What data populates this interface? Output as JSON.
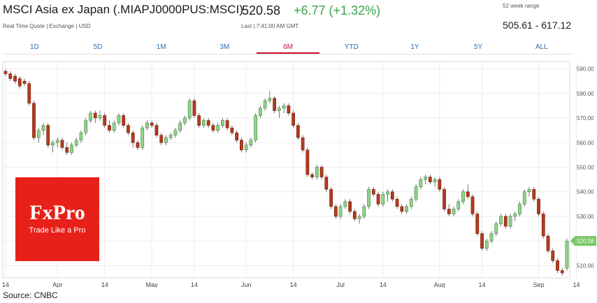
{
  "header": {
    "title": "MSCI Asia ex Japan (.MIAPJ0000PUS:MSCI)",
    "price": "520.58",
    "change": "+6.77 (+1.32%)",
    "subline": "Real Time Quote | Exchange | USD",
    "last_update": "Last | 7:41:00 AM GMT",
    "range_label": "52 week range",
    "range_value": "505.61 - 617.12"
  },
  "tabs": [
    {
      "label": "1D"
    },
    {
      "label": "5D"
    },
    {
      "label": "1M"
    },
    {
      "label": "3M"
    },
    {
      "label": "6M",
      "active": true
    },
    {
      "label": "YTD"
    },
    {
      "label": "1Y"
    },
    {
      "label": "5Y"
    },
    {
      "label": "ALL"
    }
  ],
  "logo": {
    "main": "FxPro",
    "sub": "Trade Like a Pro"
  },
  "source": "Source: CNBC",
  "colors": {
    "up": "#8fd48a",
    "down": "#b23a1e",
    "accent": "#c8102e",
    "price_tag": "#7dc86a",
    "logo_bg": "#e8201a"
  },
  "chart_data": {
    "type": "candlestick",
    "ylim": [
      505,
      593
    ],
    "y_ticks": [
      510,
      520,
      530,
      540,
      550,
      560,
      570,
      580,
      590
    ],
    "y_tick_labels": [
      "510.00",
      "520.00",
      "530.00",
      "540.00",
      "550.00",
      "560.00",
      "570.00",
      "580.00",
      "590.00"
    ],
    "x_labels": [
      {
        "i": 0,
        "label": "14"
      },
      {
        "i": 11,
        "label": "Apr"
      },
      {
        "i": 21,
        "label": "14"
      },
      {
        "i": 31,
        "label": "May"
      },
      {
        "i": 40,
        "label": "14"
      },
      {
        "i": 51,
        "label": "Jun"
      },
      {
        "i": 61,
        "label": "14"
      },
      {
        "i": 71,
        "label": "Jul"
      },
      {
        "i": 80,
        "label": "14"
      },
      {
        "i": 92,
        "label": "Aug"
      },
      {
        "i": 101,
        "label": "14"
      },
      {
        "i": 113,
        "label": "Sep"
      },
      {
        "i": 121,
        "label": "14"
      }
    ],
    "last_price_label": "520.58",
    "candles": [
      [
        589,
        590,
        587,
        588
      ],
      [
        588,
        589,
        585,
        586
      ],
      [
        587,
        588,
        584,
        585
      ],
      [
        586,
        587,
        582,
        583
      ],
      [
        585,
        586,
        583,
        584
      ],
      [
        584,
        585,
        575,
        576
      ],
      [
        576,
        577,
        561,
        562
      ],
      [
        562,
        566,
        560,
        565
      ],
      [
        565,
        568,
        563,
        567
      ],
      [
        567,
        568,
        558,
        559
      ],
      [
        559,
        561,
        556,
        560
      ],
      [
        560,
        562,
        558,
        561
      ],
      [
        561,
        562,
        557,
        558
      ],
      [
        558,
        560,
        555,
        556
      ],
      [
        556,
        560,
        555,
        559
      ],
      [
        559,
        562,
        558,
        561
      ],
      [
        561,
        565,
        560,
        564
      ],
      [
        564,
        570,
        563,
        569
      ],
      [
        569,
        573,
        568,
        572
      ],
      [
        572,
        573,
        568,
        570
      ],
      [
        570,
        573,
        569,
        571
      ],
      [
        571,
        572,
        566,
        567
      ],
      [
        567,
        569,
        564,
        565
      ],
      [
        565,
        569,
        564,
        568
      ],
      [
        568,
        572,
        567,
        571
      ],
      [
        571,
        572,
        566,
        567
      ],
      [
        567,
        568,
        563,
        564
      ],
      [
        564,
        565,
        558,
        560
      ],
      [
        560,
        561,
        557,
        558
      ],
      [
        558,
        567,
        557,
        566
      ],
      [
        566,
        569,
        565,
        568
      ],
      [
        568,
        569,
        566,
        567
      ],
      [
        567,
        568,
        562,
        563
      ],
      [
        563,
        564,
        559,
        560
      ],
      [
        560,
        563,
        559,
        562
      ],
      [
        562,
        564,
        561,
        563
      ],
      [
        563,
        566,
        562,
        565
      ],
      [
        565,
        569,
        564,
        568
      ],
      [
        568,
        571,
        567,
        570
      ],
      [
        570,
        578,
        569,
        577
      ],
      [
        577,
        578,
        570,
        571
      ],
      [
        571,
        572,
        566,
        567
      ],
      [
        567,
        570,
        566,
        569
      ],
      [
        569,
        570,
        566,
        567
      ],
      [
        567,
        568,
        564,
        565
      ],
      [
        565,
        568,
        564,
        567
      ],
      [
        567,
        570,
        566,
        569
      ],
      [
        569,
        570,
        565,
        566
      ],
      [
        566,
        567,
        563,
        564
      ],
      [
        564,
        565,
        560,
        561
      ],
      [
        561,
        562,
        556,
        557
      ],
      [
        557,
        560,
        556,
        559
      ],
      [
        559,
        562,
        558,
        561
      ],
      [
        561,
        572,
        560,
        571
      ],
      [
        571,
        575,
        570,
        574
      ],
      [
        574,
        578,
        573,
        577
      ],
      [
        577,
        581,
        576,
        578
      ],
      [
        578,
        579,
        572,
        573
      ],
      [
        573,
        575,
        570,
        574
      ],
      [
        574,
        576,
        572,
        575
      ],
      [
        575,
        576,
        571,
        572
      ],
      [
        572,
        573,
        566,
        567
      ],
      [
        567,
        568,
        561,
        562
      ],
      [
        562,
        563,
        556,
        557
      ],
      [
        557,
        558,
        546,
        547
      ],
      [
        547,
        548,
        545,
        546
      ],
      [
        546,
        551,
        545,
        550
      ],
      [
        550,
        551,
        545,
        546
      ],
      [
        546,
        547,
        540,
        541
      ],
      [
        541,
        542,
        533,
        534
      ],
      [
        534,
        535,
        529,
        530
      ],
      [
        530,
        535,
        529,
        534
      ],
      [
        534,
        537,
        533,
        536
      ],
      [
        536,
        537,
        531,
        532
      ],
      [
        532,
        533,
        528,
        529
      ],
      [
        529,
        531,
        527,
        530
      ],
      [
        530,
        535,
        529,
        534
      ],
      [
        534,
        542,
        533,
        541
      ],
      [
        541,
        542,
        538,
        539
      ],
      [
        539,
        540,
        534,
        535
      ],
      [
        535,
        540,
        534,
        539
      ],
      [
        539,
        541,
        536,
        540
      ],
      [
        540,
        541,
        536,
        537
      ],
      [
        537,
        538,
        533,
        534
      ],
      [
        534,
        535,
        531,
        532
      ],
      [
        532,
        535,
        531,
        534
      ],
      [
        534,
        538,
        533,
        537
      ],
      [
        537,
        543,
        536,
        542
      ],
      [
        542,
        546,
        541,
        545
      ],
      [
        545,
        547,
        543,
        546
      ],
      [
        546,
        547,
        543,
        544
      ],
      [
        544,
        546,
        542,
        545
      ],
      [
        545,
        546,
        540,
        541
      ],
      [
        541,
        542,
        532,
        533
      ],
      [
        533,
        535,
        530,
        531
      ],
      [
        531,
        534,
        530,
        533
      ],
      [
        533,
        537,
        532,
        536
      ],
      [
        536,
        541,
        535,
        540
      ],
      [
        540,
        543,
        537,
        538
      ],
      [
        538,
        539,
        530,
        531
      ],
      [
        531,
        532,
        522,
        523
      ],
      [
        523,
        524,
        516,
        517
      ],
      [
        517,
        521,
        516,
        520
      ],
      [
        520,
        524,
        519,
        523
      ],
      [
        523,
        528,
        522,
        527
      ],
      [
        527,
        531,
        526,
        530
      ],
      [
        530,
        531,
        525,
        526
      ],
      [
        526,
        531,
        525,
        530
      ],
      [
        530,
        532,
        528,
        531
      ],
      [
        531,
        536,
        530,
        535
      ],
      [
        535,
        541,
        534,
        540
      ],
      [
        540,
        542,
        538,
        541
      ],
      [
        541,
        542,
        536,
        537
      ],
      [
        537,
        538,
        530,
        531
      ],
      [
        531,
        532,
        521,
        522
      ],
      [
        522,
        523,
        515,
        516
      ],
      [
        516,
        517,
        511,
        512
      ],
      [
        512,
        513,
        507,
        508
      ],
      [
        508,
        509,
        506,
        507
      ],
      [
        509,
        521,
        508,
        520
      ]
    ]
  }
}
